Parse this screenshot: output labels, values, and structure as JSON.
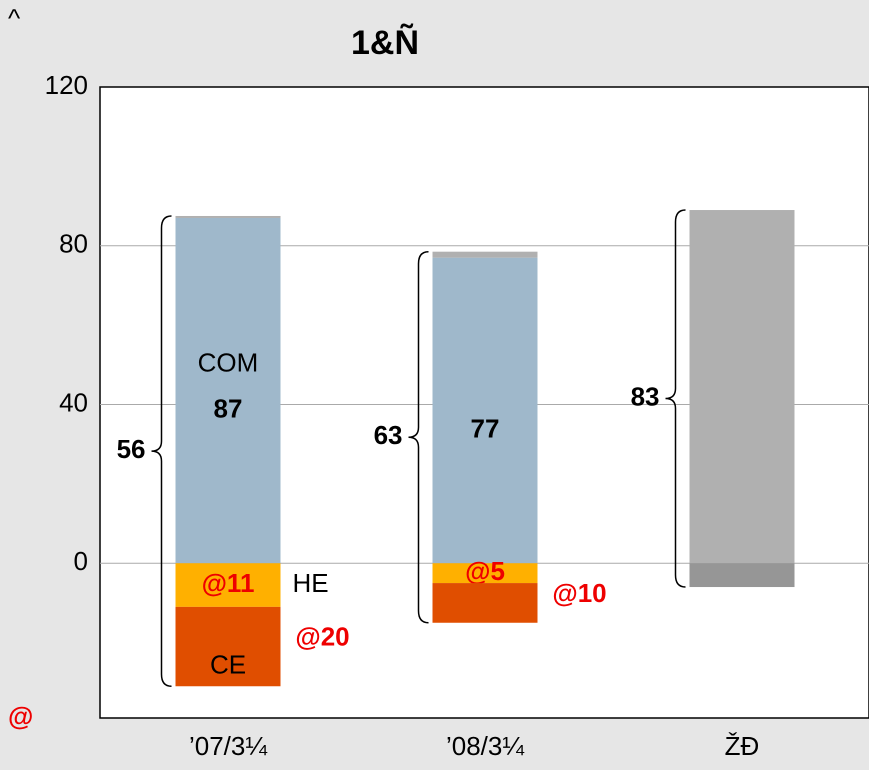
{
  "chart_data": {
    "type": "bar",
    "title": "1&Ñ",
    "unit_label": "^",
    "corner_note": "@",
    "categories": [
      "’07/3¼",
      "’08/3¼",
      "ŽĐ"
    ],
    "series": [
      {
        "name": "COM",
        "color": "#9fb8cb",
        "values": [
          87,
          77,
          null
        ],
        "value_labels": [
          "87",
          "77",
          null
        ]
      },
      {
        "name": "HE",
        "color": "#ffb000",
        "values": [
          -11,
          -5,
          null
        ],
        "value_labels": [
          "@11",
          "@5",
          null
        ]
      },
      {
        "name": "CE",
        "color": "#e04e00",
        "values": [
          -20,
          -10,
          null
        ],
        "value_labels": [
          "@20",
          "@10",
          null
        ]
      },
      {
        "color": "#b0b0b0",
        "values": [
          0.5,
          1.5,
          89
        ]
      },
      {
        "color": "#969696",
        "values": [
          null,
          null,
          -6
        ]
      }
    ],
    "totals": [
      56,
      63,
      83
    ],
    "ylim": [
      -39,
      120
    ],
    "yticks": [
      0,
      40,
      80,
      120
    ],
    "grid": true
  }
}
